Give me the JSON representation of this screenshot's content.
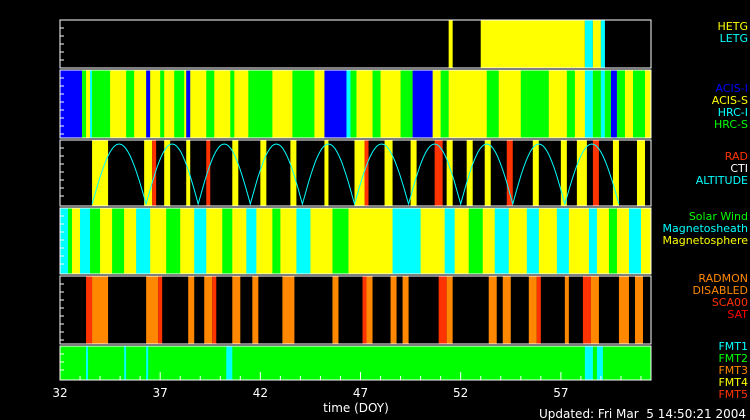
{
  "chart_data": {
    "type": "timeline",
    "x_axis": {
      "title": "time (DOY)",
      "range": [
        32,
        61.5
      ],
      "ticks": [
        "32",
        "37",
        "42",
        "47",
        "52",
        "57"
      ],
      "tick_values": [
        32,
        37,
        42,
        47,
        52,
        57
      ]
    },
    "footer": "Updated: Fri Mar  5 14:50:21 2004",
    "panels": [
      {
        "name": "grating",
        "legend": [
          {
            "label": "HETG",
            "color": "#ffff00"
          },
          {
            "label": "LETG",
            "color": "#00ffff"
          }
        ],
        "background": "#000000",
        "segments": [
          {
            "start": 51.4,
            "end": 51.6,
            "color": "#ffff00"
          },
          {
            "start": 53.0,
            "end": 58.2,
            "color": "#ffff00"
          },
          {
            "start": 58.2,
            "end": 58.6,
            "color": "#00ffff"
          },
          {
            "start": 58.6,
            "end": 59.0,
            "color": "#ffff00"
          },
          {
            "start": 59.0,
            "end": 59.2,
            "color": "#00ffff"
          }
        ]
      },
      {
        "name": "instrument",
        "legend": [
          {
            "label": "ACIS-I",
            "color": "#0000ff"
          },
          {
            "label": "ACIS-S",
            "color": "#ffff00"
          },
          {
            "label": "HRC-I",
            "color": "#00ffff"
          },
          {
            "label": "HRC-S",
            "color": "#00ff00"
          }
        ],
        "background": "#ffff00",
        "segments": [
          {
            "start": 32.0,
            "end": 33.1,
            "color": "#0000ff"
          },
          {
            "start": 33.1,
            "end": 33.3,
            "color": "#00ff00"
          },
          {
            "start": 33.5,
            "end": 33.6,
            "color": "#00ffff"
          },
          {
            "start": 33.6,
            "end": 34.5,
            "color": "#00ff00"
          },
          {
            "start": 35.3,
            "end": 35.7,
            "color": "#00ff00"
          },
          {
            "start": 36.3,
            "end": 36.5,
            "color": "#0000ff"
          },
          {
            "start": 37.0,
            "end": 37.2,
            "color": "#00ff00"
          },
          {
            "start": 37.7,
            "end": 38.2,
            "color": "#00ff00"
          },
          {
            "start": 38.3,
            "end": 38.5,
            "color": "#0000ff"
          },
          {
            "start": 39.3,
            "end": 39.7,
            "color": "#00ff00"
          },
          {
            "start": 40.5,
            "end": 40.7,
            "color": "#00ff00"
          },
          {
            "start": 41.4,
            "end": 42.6,
            "color": "#00ff00"
          },
          {
            "start": 43.6,
            "end": 44.7,
            "color": "#00ff00"
          },
          {
            "start": 45.2,
            "end": 46.3,
            "color": "#0000ff"
          },
          {
            "start": 46.3,
            "end": 46.5,
            "color": "#00ffff"
          },
          {
            "start": 46.5,
            "end": 46.8,
            "color": "#00ff00"
          },
          {
            "start": 47.6,
            "end": 48.0,
            "color": "#00ff00"
          },
          {
            "start": 49.0,
            "end": 49.6,
            "color": "#00ff00"
          },
          {
            "start": 49.6,
            "end": 50.6,
            "color": "#0000ff"
          },
          {
            "start": 51.0,
            "end": 51.4,
            "color": "#00ff00"
          },
          {
            "start": 53.3,
            "end": 53.9,
            "color": "#00ff00"
          },
          {
            "start": 55.0,
            "end": 56.4,
            "color": "#00ff00"
          },
          {
            "start": 57.3,
            "end": 57.7,
            "color": "#00ff00"
          },
          {
            "start": 58.2,
            "end": 58.6,
            "color": "#00ffff"
          },
          {
            "start": 58.6,
            "end": 59.0,
            "color": "#00ff00"
          },
          {
            "start": 59.0,
            "end": 59.2,
            "color": "#00ffff"
          },
          {
            "start": 59.2,
            "end": 59.5,
            "color": "#00ff00"
          },
          {
            "start": 59.5,
            "end": 59.8,
            "color": "#0000ff"
          },
          {
            "start": 59.8,
            "end": 60.2,
            "color": "#00ff00"
          },
          {
            "start": 60.6,
            "end": 61.2,
            "color": "#00ff00"
          }
        ]
      },
      {
        "name": "radiation",
        "legend": [
          {
            "label": "RAD",
            "color": "#ff3300"
          },
          {
            "label": "CTI",
            "color": "#ffffff"
          },
          {
            "label": "ALTITUDE",
            "color": "#00ffff"
          }
        ],
        "background": "#000000",
        "segments": [
          {
            "start": 33.6,
            "end": 34.4,
            "color": "#ffff00"
          },
          {
            "start": 36.2,
            "end": 36.6,
            "color": "#ffff00"
          },
          {
            "start": 36.6,
            "end": 36.8,
            "color": "#ff3300"
          },
          {
            "start": 37.2,
            "end": 37.5,
            "color": "#ffff00"
          },
          {
            "start": 38.3,
            "end": 38.5,
            "color": "#ffff00"
          },
          {
            "start": 39.3,
            "end": 39.5,
            "color": "#ff3300"
          },
          {
            "start": 40.6,
            "end": 40.9,
            "color": "#ffff00"
          },
          {
            "start": 42.0,
            "end": 42.3,
            "color": "#ffff00"
          },
          {
            "start": 43.5,
            "end": 43.8,
            "color": "#ffff00"
          },
          {
            "start": 45.2,
            "end": 45.4,
            "color": "#ffff00"
          },
          {
            "start": 46.7,
            "end": 47.2,
            "color": "#ffff00"
          },
          {
            "start": 47.2,
            "end": 47.4,
            "color": "#ff3300"
          },
          {
            "start": 48.2,
            "end": 48.6,
            "color": "#ffff00"
          },
          {
            "start": 49.5,
            "end": 49.8,
            "color": "#ffff00"
          },
          {
            "start": 50.7,
            "end": 51.1,
            "color": "#ff3300"
          },
          {
            "start": 51.3,
            "end": 51.6,
            "color": "#ffff00"
          },
          {
            "start": 52.3,
            "end": 52.6,
            "color": "#ffff00"
          },
          {
            "start": 53.2,
            "end": 53.5,
            "color": "#ffff00"
          },
          {
            "start": 54.3,
            "end": 54.6,
            "color": "#ff3300"
          },
          {
            "start": 55.6,
            "end": 55.9,
            "color": "#ffff00"
          },
          {
            "start": 57.0,
            "end": 57.3,
            "color": "#ffff00"
          },
          {
            "start": 57.8,
            "end": 58.3,
            "color": "#ffff00"
          },
          {
            "start": 58.6,
            "end": 58.9,
            "color": "#ff3300"
          },
          {
            "start": 59.6,
            "end": 59.9,
            "color": "#ffff00"
          },
          {
            "start": 60.8,
            "end": 61.2,
            "color": "#ffff00"
          }
        ],
        "altitude_curve": {
          "color": "#00ffff",
          "perigee_days": [
            33.6,
            36.3,
            38.9,
            41.5,
            44.1,
            46.7,
            49.4,
            52.0,
            54.6,
            57.2,
            59.9
          ]
        }
      },
      {
        "name": "environment",
        "legend": [
          {
            "label": "Solar Wind",
            "color": "#00ff00"
          },
          {
            "label": "Magnetosheath",
            "color": "#00ffff"
          },
          {
            "label": "Magnetosphere",
            "color": "#ffff00"
          }
        ],
        "background": "#ffff00",
        "segments": [
          {
            "start": 32.0,
            "end": 32.4,
            "color": "#00ffff"
          },
          {
            "start": 32.4,
            "end": 32.6,
            "color": "#00ff00"
          },
          {
            "start": 33.0,
            "end": 33.5,
            "color": "#00ffff"
          },
          {
            "start": 33.5,
            "end": 34.0,
            "color": "#00ff00"
          },
          {
            "start": 34.6,
            "end": 35.2,
            "color": "#00ff00"
          },
          {
            "start": 35.8,
            "end": 36.5,
            "color": "#00ffff"
          },
          {
            "start": 37.3,
            "end": 38.0,
            "color": "#00ff00"
          },
          {
            "start": 38.7,
            "end": 39.3,
            "color": "#00ffff"
          },
          {
            "start": 40.1,
            "end": 40.6,
            "color": "#00ff00"
          },
          {
            "start": 41.3,
            "end": 41.8,
            "color": "#00ffff"
          },
          {
            "start": 42.6,
            "end": 43.0,
            "color": "#00ff00"
          },
          {
            "start": 43.8,
            "end": 44.5,
            "color": "#00ffff"
          },
          {
            "start": 45.6,
            "end": 46.4,
            "color": "#00ff00"
          },
          {
            "start": 48.6,
            "end": 50.0,
            "color": "#00ffff"
          },
          {
            "start": 51.2,
            "end": 51.7,
            "color": "#00ffff"
          },
          {
            "start": 52.4,
            "end": 53.1,
            "color": "#00ff00"
          },
          {
            "start": 53.7,
            "end": 54.4,
            "color": "#00ffff"
          },
          {
            "start": 55.3,
            "end": 55.9,
            "color": "#00ffff"
          },
          {
            "start": 56.8,
            "end": 57.4,
            "color": "#00ffff"
          },
          {
            "start": 58.4,
            "end": 58.8,
            "color": "#00ffff"
          },
          {
            "start": 59.4,
            "end": 59.8,
            "color": "#00ff00"
          },
          {
            "start": 60.4,
            "end": 61.0,
            "color": "#00ffff"
          }
        ]
      },
      {
        "name": "radmon",
        "legend": [
          {
            "label": "RADMON",
            "color": "#ff8800"
          },
          {
            "label": "DISABLED",
            "color": "#ff8800"
          },
          {
            "label": "SCA00",
            "color": "#ff3300"
          },
          {
            "label": "SAT",
            "color": "#ff0000"
          }
        ],
        "background": "#000000",
        "segments": [
          {
            "start": 33.3,
            "end": 33.6,
            "color": "#ff3300"
          },
          {
            "start": 33.6,
            "end": 34.4,
            "color": "#ff8800"
          },
          {
            "start": 36.3,
            "end": 36.9,
            "color": "#ff8800"
          },
          {
            "start": 36.9,
            "end": 37.1,
            "color": "#ff3300"
          },
          {
            "start": 38.4,
            "end": 38.7,
            "color": "#ff8800"
          },
          {
            "start": 39.2,
            "end": 39.6,
            "color": "#ff8800"
          },
          {
            "start": 39.6,
            "end": 39.8,
            "color": "#ff3300"
          },
          {
            "start": 40.6,
            "end": 41.0,
            "color": "#ff8800"
          },
          {
            "start": 41.6,
            "end": 41.9,
            "color": "#ff8800"
          },
          {
            "start": 43.1,
            "end": 43.7,
            "color": "#ff8800"
          },
          {
            "start": 45.6,
            "end": 45.9,
            "color": "#ff8800"
          },
          {
            "start": 47.1,
            "end": 47.3,
            "color": "#ff3300"
          },
          {
            "start": 47.3,
            "end": 47.6,
            "color": "#ff8800"
          },
          {
            "start": 48.5,
            "end": 48.8,
            "color": "#ff8800"
          },
          {
            "start": 49.1,
            "end": 49.4,
            "color": "#ff8800"
          },
          {
            "start": 50.9,
            "end": 51.3,
            "color": "#ff3300"
          },
          {
            "start": 51.3,
            "end": 51.6,
            "color": "#ff8800"
          },
          {
            "start": 53.4,
            "end": 53.8,
            "color": "#ff8800"
          },
          {
            "start": 54.1,
            "end": 54.5,
            "color": "#ff8800"
          },
          {
            "start": 55.4,
            "end": 55.8,
            "color": "#ff8800"
          },
          {
            "start": 55.8,
            "end": 56.0,
            "color": "#ff3300"
          },
          {
            "start": 57.2,
            "end": 57.4,
            "color": "#ff8800"
          },
          {
            "start": 58.1,
            "end": 58.5,
            "color": "#ff3300"
          },
          {
            "start": 58.5,
            "end": 58.9,
            "color": "#ff8800"
          },
          {
            "start": 59.9,
            "end": 60.4,
            "color": "#ff8800"
          },
          {
            "start": 60.7,
            "end": 61.1,
            "color": "#ff8800"
          }
        ]
      },
      {
        "name": "telemetry-format",
        "legend": [
          {
            "label": "FMT1",
            "color": "#00ffff"
          },
          {
            "label": "FMT2",
            "color": "#00ff00"
          },
          {
            "label": "FMT3",
            "color": "#ff8800"
          },
          {
            "label": "FMT4",
            "color": "#ffff00"
          },
          {
            "label": "FMT5",
            "color": "#ff3300"
          }
        ],
        "background": "#00ff00",
        "segments": [
          {
            "start": 33.3,
            "end": 33.4,
            "color": "#00ffff"
          },
          {
            "start": 35.2,
            "end": 35.3,
            "color": "#00ffff"
          },
          {
            "start": 36.3,
            "end": 36.4,
            "color": "#00ffff"
          },
          {
            "start": 40.3,
            "end": 40.6,
            "color": "#00ffff"
          },
          {
            "start": 58.2,
            "end": 58.6,
            "color": "#00ffff"
          },
          {
            "start": 58.8,
            "end": 59.1,
            "color": "#00ffff"
          }
        ]
      }
    ]
  }
}
